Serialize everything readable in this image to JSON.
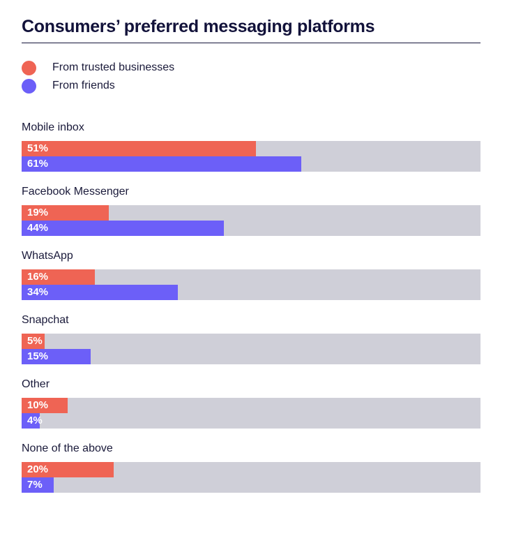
{
  "chart_data": {
    "type": "bar",
    "orientation": "horizontal",
    "title": "Consumers’ preferred messaging platforms",
    "categories": [
      "Mobile inbox",
      "Facebook Messenger",
      "WhatsApp",
      "Snapchat",
      "Other",
      "None of the above"
    ],
    "series": [
      {
        "name": "From trusted businesses",
        "color": "#ef6454",
        "values": [
          51,
          19,
          16,
          5,
          10,
          20
        ],
        "labels": [
          "51%",
          "19%",
          "16%",
          "5%",
          "10%",
          "20%"
        ]
      },
      {
        "name": "From friends",
        "color": "#6c5ff8",
        "values": [
          61,
          44,
          34,
          15,
          4,
          7
        ],
        "labels": [
          "61%",
          "44%",
          "34%",
          "15%",
          "4%",
          "7%"
        ]
      }
    ],
    "xlim": [
      0,
      100
    ],
    "legend_position": "top-left",
    "grid": false
  },
  "colors": {
    "track": "#cfcfd8",
    "text": "#14143a"
  }
}
